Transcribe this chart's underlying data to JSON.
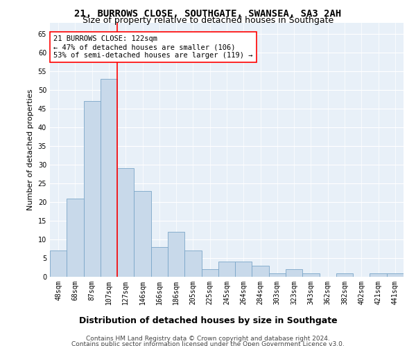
{
  "title": "21, BURROWS CLOSE, SOUTHGATE, SWANSEA, SA3 2AH",
  "subtitle": "Size of property relative to detached houses in Southgate",
  "xlabel": "Distribution of detached houses by size in Southgate",
  "ylabel": "Number of detached properties",
  "bar_color": "#c8d9ea",
  "bar_edge_color": "#7aa5c8",
  "bin_labels": [
    "48sqm",
    "68sqm",
    "87sqm",
    "107sqm",
    "127sqm",
    "146sqm",
    "166sqm",
    "186sqm",
    "205sqm",
    "225sqm",
    "245sqm",
    "264sqm",
    "284sqm",
    "303sqm",
    "323sqm",
    "343sqm",
    "362sqm",
    "382sqm",
    "402sqm",
    "421sqm",
    "441sqm"
  ],
  "bar_values": [
    7,
    21,
    47,
    53,
    29,
    23,
    8,
    12,
    7,
    2,
    4,
    4,
    3,
    1,
    2,
    1,
    0,
    1,
    0,
    1,
    1
  ],
  "vline_color": "red",
  "vline_x_index": 3.5,
  "ylim": [
    0,
    68
  ],
  "yticks": [
    0,
    5,
    10,
    15,
    20,
    25,
    30,
    35,
    40,
    45,
    50,
    55,
    60,
    65
  ],
  "annotation_text": "21 BURROWS CLOSE: 122sqm\n← 47% of detached houses are smaller (106)\n53% of semi-detached houses are larger (119) →",
  "annotation_box_facecolor": "white",
  "annotation_box_edgecolor": "red",
  "footer_line1": "Contains HM Land Registry data © Crown copyright and database right 2024.",
  "footer_line2": "Contains public sector information licensed under the Open Government Licence v3.0.",
  "background_color": "#e8f0f8",
  "grid_color": "white",
  "title_fontsize": 10,
  "subtitle_fontsize": 9,
  "xlabel_fontsize": 9,
  "ylabel_fontsize": 8,
  "tick_fontsize": 7,
  "annotation_fontsize": 7.5,
  "footer_fontsize": 6.5
}
